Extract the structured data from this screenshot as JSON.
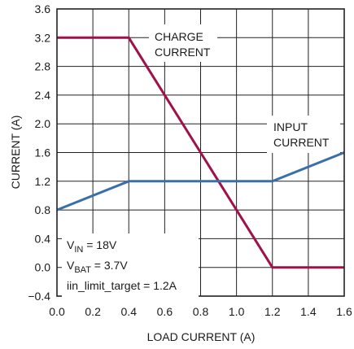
{
  "chart_data": {
    "type": "line",
    "xlabel": "LOAD CURRENT (A)",
    "ylabel": "CURRENT (A)",
    "xlim": [
      0,
      1.6
    ],
    "ylim": [
      -0.4,
      3.6
    ],
    "xticks": [
      "0.0",
      "0.2",
      "0.4",
      "0.6",
      "0.8",
      "1.0",
      "1.2",
      "1.4",
      "1.6"
    ],
    "yticks": [
      "−0.4",
      "0.0",
      "0.4",
      "0.8",
      "1.2",
      "1.6",
      "2.0",
      "2.4",
      "2.8",
      "3.2",
      "3.6"
    ],
    "grid": true,
    "series": [
      {
        "name": "CHARGE CURRENT",
        "label_lines": [
          "CHARGE",
          "CURRENT"
        ],
        "color": "#a0104a",
        "x": [
          0.0,
          0.4,
          1.2,
          1.6
        ],
        "y": [
          3.2,
          3.2,
          0.0,
          0.0
        ]
      },
      {
        "name": "INPUT CURRENT",
        "label_lines": [
          "INPUT",
          "CURRENT"
        ],
        "color": "#3a6fa8",
        "x": [
          0.0,
          0.4,
          1.2,
          1.6
        ],
        "y": [
          0.8,
          1.2,
          1.2,
          1.6
        ]
      }
    ],
    "annotations": {
      "vin": {
        "main": "V",
        "sub": "IN",
        "rest": " = 18V"
      },
      "vbat": {
        "main": "V",
        "sub": "BAT",
        "rest": " = 3.7V"
      },
      "limit": "iin_limit_target = 1.2A"
    }
  }
}
